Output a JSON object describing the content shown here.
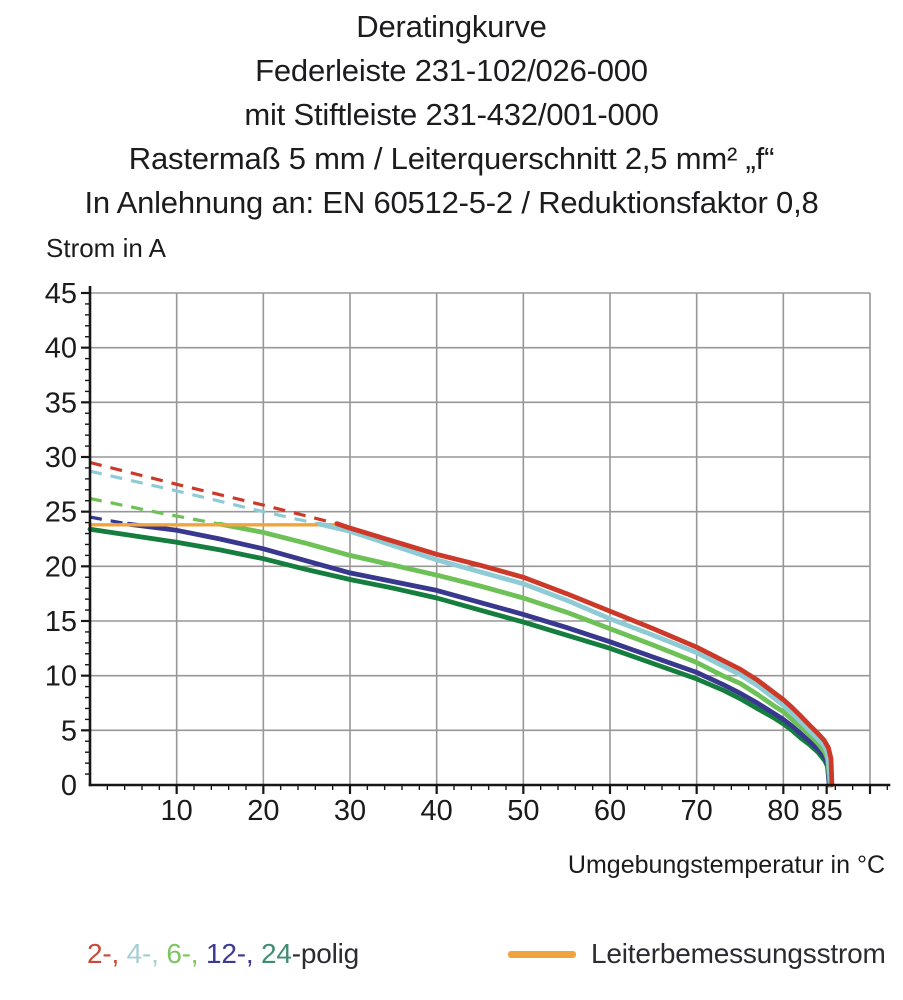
{
  "title_lines": [
    "Deratingkurve",
    "Federleiste 231-102/026-000",
    "mit Stiftleiste 231-432/001-000",
    "Rastermaß 5 mm / Leiterquerschnitt 2,5 mm² „f“",
    "In Anlehnung an: EN 60512-5-2 / Reduktionsfaktor 0,8"
  ],
  "legend": {
    "poles": {
      "parts": [
        {
          "text": "2-,",
          "color": "#c94a3a"
        },
        {
          "text": " 4-,",
          "color": "#a7ced6"
        },
        {
          "text": " 6-,",
          "color": "#7dc463"
        },
        {
          "text": " 12-,",
          "color": "#3c3a92"
        },
        {
          "text": " 24",
          "color": "#3f8d72"
        },
        {
          "text": "-polig",
          "color": "#2b2b32"
        }
      ]
    },
    "rated": {
      "label": "Leiterbemessungsstrom",
      "color": "#f2a43c"
    }
  },
  "colors": {
    "grid": "#979797",
    "axis": "#161616",
    "tick_text": "#1b1b1d"
  },
  "chart_data": {
    "type": "line",
    "title": "Deratingkurve",
    "xlabel": "Umgebungstemperatur in °C",
    "ylabel": "Strom in A",
    "xlim": [
      0,
      90
    ],
    "ylim": [
      0,
      45
    ],
    "grid": true,
    "legend_position": "bottom",
    "x_major_tick_labels": [
      10,
      20,
      30,
      40,
      50,
      60,
      70,
      80,
      85
    ],
    "x_grid_step": 10,
    "x_minor_step": 2,
    "x_axis_overhang": 92,
    "y_tick_step": 5,
    "y_minor_step": 1,
    "rated_line": {
      "name": "Leiterbemessungsstrom",
      "current_a": 23.8,
      "x_start": 0,
      "x_end": 29,
      "color": "#f2a43c"
    },
    "series": [
      {
        "name": "2-polig",
        "color": "#cd3928",
        "dashed_points": [
          [
            0,
            29.5
          ],
          [
            10,
            27.5
          ],
          [
            20,
            25.6
          ],
          [
            28.5,
            23.9
          ]
        ],
        "solid_points": [
          [
            28.5,
            23.9
          ],
          [
            30,
            23.5
          ],
          [
            35,
            22.3
          ],
          [
            40,
            21.1
          ],
          [
            45,
            20.1
          ],
          [
            50,
            19.0
          ],
          [
            55,
            17.5
          ],
          [
            60,
            15.9
          ],
          [
            65,
            14.3
          ],
          [
            70,
            12.6
          ],
          [
            73,
            11.4
          ],
          [
            75,
            10.6
          ],
          [
            77,
            9.6
          ],
          [
            79,
            8.4
          ],
          [
            80,
            7.8
          ],
          [
            81,
            7.1
          ],
          [
            82,
            6.3
          ],
          [
            83,
            5.5
          ],
          [
            84,
            4.7
          ],
          [
            84.7,
            4.1
          ],
          [
            85.2,
            3.4
          ],
          [
            85.5,
            2.4
          ],
          [
            85.6,
            0
          ]
        ]
      },
      {
        "name": "4-polig",
        "color": "#8fcbd4",
        "dashed_points": [
          [
            0,
            28.7
          ],
          [
            10,
            26.9
          ],
          [
            20,
            25.0
          ],
          [
            26.5,
            23.85
          ]
        ],
        "solid_points": [
          [
            26.5,
            23.85
          ],
          [
            30,
            23.2
          ],
          [
            35,
            21.9
          ],
          [
            40,
            20.6
          ],
          [
            45,
            19.5
          ],
          [
            50,
            18.4
          ],
          [
            55,
            16.9
          ],
          [
            60,
            15.2
          ],
          [
            65,
            13.7
          ],
          [
            70,
            12.1
          ],
          [
            73,
            10.9
          ],
          [
            75,
            10.1
          ],
          [
            77,
            9.1
          ],
          [
            79,
            7.9
          ],
          [
            80,
            7.3
          ],
          [
            81,
            6.6
          ],
          [
            82,
            5.8
          ],
          [
            83,
            5.0
          ],
          [
            84,
            4.2
          ],
          [
            84.7,
            3.6
          ],
          [
            85.1,
            2.9
          ],
          [
            85.5,
            0
          ]
        ]
      },
      {
        "name": "6-polig",
        "color": "#6ec157",
        "dashed_points": [
          [
            0,
            26.2
          ],
          [
            8,
            24.9
          ],
          [
            15,
            23.85
          ]
        ],
        "solid_points": [
          [
            15,
            23.85
          ],
          [
            20,
            23.1
          ],
          [
            25,
            22.1
          ],
          [
            30,
            21.0
          ],
          [
            35,
            20.1
          ],
          [
            40,
            19.2
          ],
          [
            45,
            18.2
          ],
          [
            50,
            17.1
          ],
          [
            55,
            15.8
          ],
          [
            60,
            14.3
          ],
          [
            65,
            12.8
          ],
          [
            70,
            11.2
          ],
          [
            73,
            10.0
          ],
          [
            75,
            9.3
          ],
          [
            77,
            8.3
          ],
          [
            79,
            7.2
          ],
          [
            80,
            6.7
          ],
          [
            81,
            6.0
          ],
          [
            82,
            5.3
          ],
          [
            83,
            4.6
          ],
          [
            84,
            3.8
          ],
          [
            84.8,
            3.0
          ],
          [
            85.1,
            2.4
          ],
          [
            85.4,
            0
          ]
        ]
      },
      {
        "name": "12-polig",
        "color": "#38388e",
        "dashed_points": [
          [
            0,
            24.5
          ],
          [
            4.5,
            23.85
          ]
        ],
        "solid_points": [
          [
            4.5,
            23.85
          ],
          [
            10,
            23.3
          ],
          [
            15,
            22.5
          ],
          [
            20,
            21.6
          ],
          [
            25,
            20.5
          ],
          [
            30,
            19.4
          ],
          [
            35,
            18.6
          ],
          [
            40,
            17.8
          ],
          [
            45,
            16.7
          ],
          [
            50,
            15.6
          ],
          [
            55,
            14.4
          ],
          [
            60,
            13.1
          ],
          [
            65,
            11.7
          ],
          [
            70,
            10.3
          ],
          [
            73,
            9.2
          ],
          [
            75,
            8.4
          ],
          [
            77,
            7.5
          ],
          [
            79,
            6.5
          ],
          [
            80,
            6.0
          ],
          [
            81,
            5.4
          ],
          [
            82,
            4.7
          ],
          [
            83,
            4.0
          ],
          [
            84,
            3.3
          ],
          [
            84.8,
            2.5
          ],
          [
            85.1,
            1.9
          ],
          [
            85.3,
            0
          ]
        ]
      },
      {
        "name": "24-polig",
        "color": "#157e3e",
        "dashed_points": [],
        "solid_points": [
          [
            0,
            23.4
          ],
          [
            5,
            22.8
          ],
          [
            10,
            22.2
          ],
          [
            15,
            21.5
          ],
          [
            20,
            20.7
          ],
          [
            25,
            19.7
          ],
          [
            30,
            18.8
          ],
          [
            35,
            18.0
          ],
          [
            40,
            17.1
          ],
          [
            45,
            16.0
          ],
          [
            50,
            14.9
          ],
          [
            55,
            13.7
          ],
          [
            60,
            12.5
          ],
          [
            65,
            11.1
          ],
          [
            70,
            9.7
          ],
          [
            73,
            8.7
          ],
          [
            75,
            7.9
          ],
          [
            77,
            7.0
          ],
          [
            79,
            6.1
          ],
          [
            80,
            5.6
          ],
          [
            81,
            5.0
          ],
          [
            82,
            4.3
          ],
          [
            83,
            3.7
          ],
          [
            84,
            3.0
          ],
          [
            84.8,
            2.2
          ],
          [
            85.1,
            1.7
          ],
          [
            85.3,
            0
          ]
        ]
      }
    ]
  }
}
